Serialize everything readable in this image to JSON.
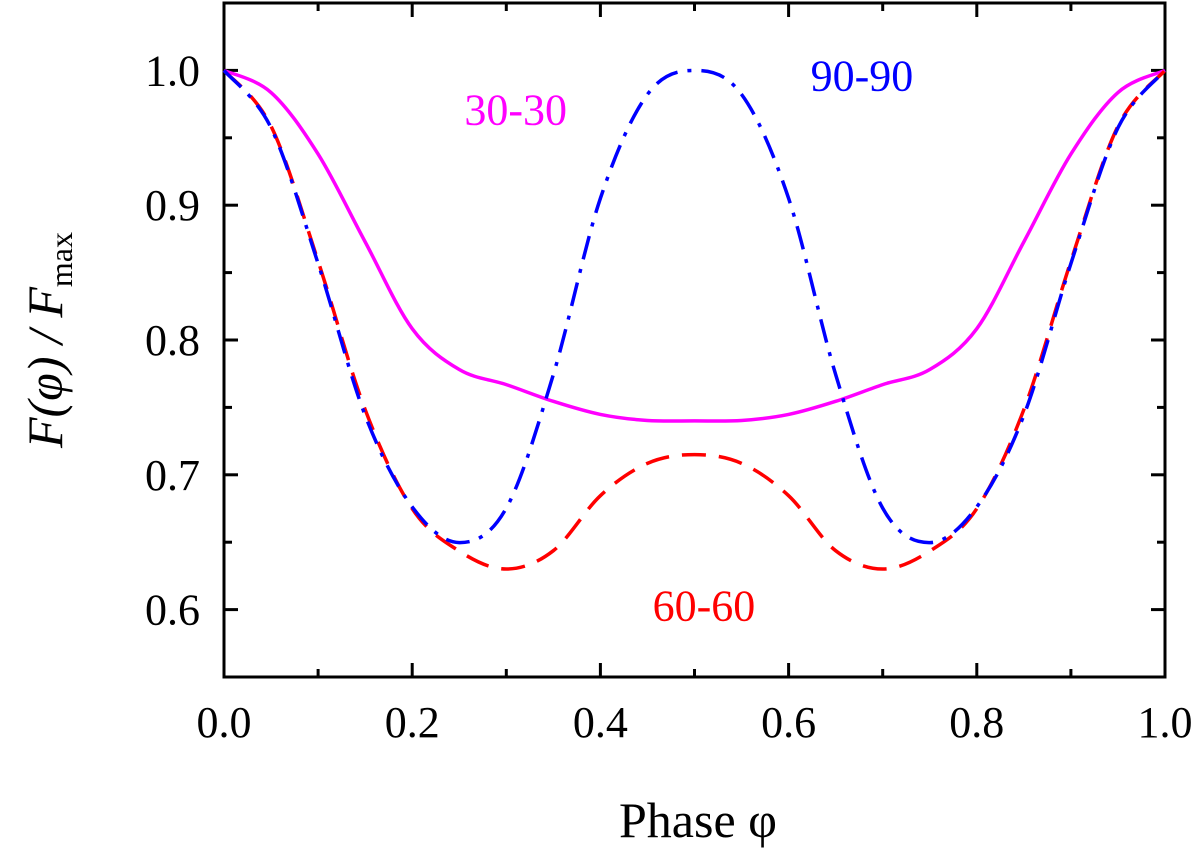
{
  "chart_data": {
    "type": "line",
    "xlabel": "Phase φ",
    "ylabel_main": "F(φ) / F",
    "ylabel_sub": "max",
    "xlim": [
      0.0,
      1.0
    ],
    "ylim": [
      0.55,
      1.05
    ],
    "xticks": [
      0.0,
      0.2,
      0.4,
      0.6,
      0.8,
      1.0
    ],
    "xtick_labels": [
      "0.0",
      "0.2",
      "0.4",
      "0.6",
      "0.8",
      "1.0"
    ],
    "xticks_minor": [
      0.1,
      0.3,
      0.5,
      0.7,
      0.9
    ],
    "yticks": [
      0.6,
      0.7,
      0.8,
      0.9,
      1.0
    ],
    "ytick_labels": [
      "0.6",
      "0.7",
      "0.8",
      "0.9",
      "1.0"
    ],
    "yticks_minor": [
      0.65,
      0.75,
      0.85,
      0.95
    ],
    "grid": false,
    "series": [
      {
        "name": "30-30",
        "color": "#ff00ff",
        "style": "solid",
        "label_anchor": [
          0.31,
          0.96
        ],
        "x": [
          0.0,
          0.05,
          0.1,
          0.15,
          0.2,
          0.25,
          0.3,
          0.35,
          0.4,
          0.45,
          0.5,
          0.55,
          0.6,
          0.65,
          0.7,
          0.75,
          0.8,
          0.85,
          0.9,
          0.95,
          1.0
        ],
        "y": [
          1.0,
          0.9836,
          0.9379,
          0.8728,
          0.8084,
          0.7781,
          0.7669,
          0.7545,
          0.7448,
          0.7403,
          0.74,
          0.7403,
          0.7448,
          0.7545,
          0.7669,
          0.7781,
          0.8084,
          0.8728,
          0.9379,
          0.9836,
          1.0
        ]
      },
      {
        "name": "60-60",
        "color": "#ff0000",
        "style": "dashed",
        "label_anchor": [
          0.51,
          0.592
        ],
        "x": [
          0.0,
          0.05,
          0.1,
          0.15,
          0.2,
          0.25,
          0.3,
          0.35,
          0.4,
          0.45,
          0.5,
          0.55,
          0.6,
          0.65,
          0.7,
          0.75,
          0.8,
          0.85,
          0.9,
          0.95,
          1.0
        ],
        "y": [
          1.0,
          0.9586,
          0.8585,
          0.7484,
          0.6749,
          0.6434,
          0.6301,
          0.6437,
          0.6845,
          0.7085,
          0.715,
          0.7085,
          0.6845,
          0.6437,
          0.6301,
          0.6434,
          0.6749,
          0.7484,
          0.8585,
          0.9586,
          1.0
        ]
      },
      {
        "name": "90-90",
        "color": "#0000ff",
        "style": "dashdot",
        "label_anchor": [
          0.678,
          0.985
        ],
        "x": [
          0.0,
          0.05,
          0.1,
          0.15,
          0.2,
          0.25,
          0.3,
          0.35,
          0.4,
          0.45,
          0.5,
          0.55,
          0.6,
          0.65,
          0.7,
          0.75,
          0.8,
          0.85,
          0.9,
          0.95,
          1.0
        ],
        "y": [
          1.0,
          0.9574,
          0.8567,
          0.7441,
          0.6762,
          0.6497,
          0.6753,
          0.7744,
          0.9051,
          0.9822,
          1.0,
          0.9822,
          0.9051,
          0.7744,
          0.6753,
          0.6497,
          0.6762,
          0.7441,
          0.8567,
          0.9574,
          1.0
        ]
      }
    ]
  }
}
